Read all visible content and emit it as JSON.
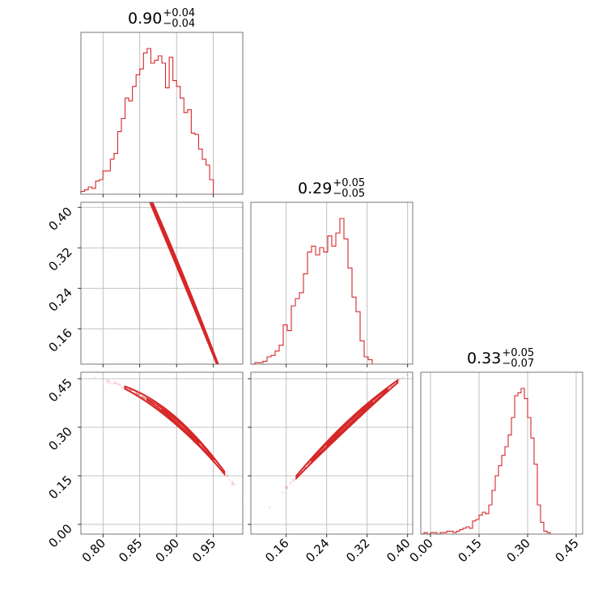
{
  "chart_data": {
    "type": "corner",
    "color": "#d62728",
    "parameters": [
      {
        "median": "0.90",
        "plus": "+0.04",
        "minus": "−0.04",
        "range": [
          0.77,
          0.99
        ],
        "ticks": [
          0.8,
          0.85,
          0.9,
          0.95
        ],
        "tick_labels": [
          "0.80",
          "0.85",
          "0.90",
          "0.95"
        ],
        "histogram": {
          "bin_start": 0.77,
          "bin_width": 0.005,
          "counts": [
            2,
            3,
            5,
            4,
            9,
            10,
            16,
            16,
            24,
            28,
            43,
            52,
            66,
            64,
            74,
            82,
            86,
            97,
            100,
            90,
            92,
            95,
            90,
            73,
            94,
            78,
            74,
            66,
            56,
            58,
            42,
            41,
            31,
            24,
            20,
            10
          ]
        }
      },
      {
        "median": "0.29",
        "plus": "+0.05",
        "minus": "−0.05",
        "range": [
          0.09,
          0.41
        ],
        "ticks": [
          0.16,
          0.24,
          0.32,
          0.4
        ],
        "tick_labels": [
          "0.16",
          "0.24",
          "0.32",
          "0.40"
        ],
        "histogram": {
          "bin_start": 0.09,
          "bin_width": 0.008,
          "counts": [
            0,
            1,
            1,
            2,
            5,
            6,
            9,
            13,
            27,
            23,
            40,
            45,
            49,
            62,
            77,
            81,
            75,
            80,
            77,
            88,
            81,
            90,
            100,
            86,
            66,
            46,
            36,
            16,
            5,
            3
          ]
        }
      },
      {
        "median": "0.33",
        "plus": "+0.05",
        "minus": "−0.07",
        "range": [
          -0.03,
          0.47
        ],
        "ticks": [
          0.0,
          0.15,
          0.3,
          0.45
        ],
        "tick_labels": [
          "0.00",
          "0.15",
          "0.30",
          "0.45"
        ],
        "histogram": {
          "bin_start": -0.03,
          "bin_width": 0.01,
          "counts": [
            0,
            1,
            0,
            1,
            1,
            0,
            1,
            1,
            2,
            2,
            1,
            2,
            3,
            4,
            5,
            4,
            9,
            10,
            13,
            15,
            14,
            20,
            30,
            40,
            47,
            54,
            60,
            68,
            80,
            95,
            97,
            100,
            93,
            80,
            66,
            48,
            20,
            8,
            2,
            1
          ]
        }
      }
    ],
    "correlations": [
      {
        "pair": [
          0,
          1
        ],
        "intercept": 3.45,
        "slope": -3.51,
        "curvature": -1.8,
        "center": 0.9
      },
      {
        "pair": [
          0,
          2
        ],
        "intercept": 2.1,
        "slope": -1.98,
        "curvature": -7.0,
        "center": 0.9
      },
      {
        "pair": [
          1,
          2
        ],
        "intercept": -0.1,
        "slope": 1.45,
        "curvature": -1.2,
        "center": 0.29
      }
    ],
    "grid": true
  }
}
